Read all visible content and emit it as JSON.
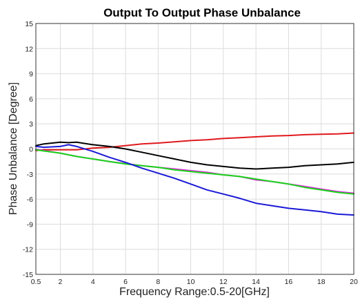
{
  "chart_data": {
    "type": "line",
    "title": "Output To Output Phase Unbalance",
    "xlabel": "Frequency Range:0.5-20[GHz]",
    "ylabel": "Phase Unbalance [Degree]",
    "xlim": [
      0.5,
      20
    ],
    "ylim": [
      -15,
      15
    ],
    "xticks": [
      0.5,
      2,
      4,
      6,
      8,
      10,
      12,
      14,
      16,
      18,
      20
    ],
    "xtick_labels": [
      "0.5",
      "2",
      "4",
      "6",
      "8",
      "10",
      "12",
      "14",
      "16",
      "18",
      "20"
    ],
    "yticks": [
      -15,
      -12,
      -9,
      -6,
      -3,
      0,
      3,
      6,
      9,
      12,
      15
    ],
    "ytick_labels": [
      "-15",
      "-12",
      "-9",
      "-6",
      "-3",
      "0",
      "3",
      "6",
      "9",
      "12",
      "15"
    ],
    "grid": true,
    "series": [
      {
        "color": "#e0191c",
        "x": [
          0.5,
          1,
          2,
          3,
          4,
          5,
          6,
          7,
          8,
          9,
          10,
          11,
          12,
          13,
          14,
          15,
          16,
          17,
          18,
          19,
          20
        ],
        "y": [
          -0.2,
          -0.1,
          -0.1,
          -0.1,
          0.1,
          0.2,
          0.4,
          0.6,
          0.7,
          0.85,
          1.0,
          1.1,
          1.25,
          1.35,
          1.45,
          1.55,
          1.6,
          1.7,
          1.75,
          1.8,
          1.9
        ]
      },
      {
        "color": "#000000",
        "x": [
          0.5,
          1,
          2,
          2.5,
          3,
          4,
          5,
          6,
          7,
          8,
          9,
          10,
          11,
          12,
          13,
          14,
          15,
          16,
          17,
          18,
          19,
          20
        ],
        "y": [
          0.4,
          0.6,
          0.8,
          0.75,
          0.8,
          0.5,
          0.3,
          0.0,
          -0.4,
          -0.8,
          -1.2,
          -1.6,
          -1.9,
          -2.1,
          -2.3,
          -2.4,
          -2.3,
          -2.2,
          -2.0,
          -1.9,
          -1.8,
          -1.6
        ]
      },
      {
        "color": "#e020e0",
        "x": [
          0.5,
          1,
          2,
          3,
          4,
          5,
          6,
          7,
          8,
          9,
          10,
          11,
          12,
          13,
          14,
          15,
          16,
          17,
          18,
          19,
          20
        ],
        "y": [
          -0.05,
          -0.2,
          -0.5,
          -0.9,
          -1.2,
          -1.5,
          -1.75,
          -2.0,
          -2.2,
          -2.4,
          -2.6,
          -2.8,
          -3.1,
          -3.3,
          -3.7,
          -3.9,
          -4.2,
          -4.5,
          -4.8,
          -5.1,
          -5.3
        ]
      },
      {
        "color": "#19d419",
        "x": [
          0.5,
          1,
          2,
          3,
          4,
          5,
          6,
          7,
          8,
          9,
          10,
          11,
          12,
          13,
          14,
          15,
          16,
          17,
          18,
          19,
          20
        ],
        "y": [
          -0.1,
          -0.25,
          -0.5,
          -0.9,
          -1.2,
          -1.5,
          -1.8,
          -2.0,
          -2.2,
          -2.5,
          -2.7,
          -2.9,
          -3.1,
          -3.3,
          -3.6,
          -3.9,
          -4.2,
          -4.6,
          -4.9,
          -5.2,
          -5.4
        ]
      },
      {
        "color": "#1a19d6",
        "x": [
          0.5,
          1,
          2,
          2.5,
          3,
          4,
          5,
          6,
          7,
          8,
          9,
          10,
          11,
          12,
          13,
          14,
          15,
          16,
          17,
          18,
          19,
          20
        ],
        "y": [
          0.3,
          0.2,
          0.3,
          0.5,
          0.3,
          -0.3,
          -1.0,
          -1.6,
          -2.3,
          -2.9,
          -3.5,
          -4.2,
          -4.9,
          -5.4,
          -5.9,
          -6.5,
          -6.8,
          -7.1,
          -7.3,
          -7.5,
          -7.8,
          -7.9
        ]
      }
    ]
  }
}
